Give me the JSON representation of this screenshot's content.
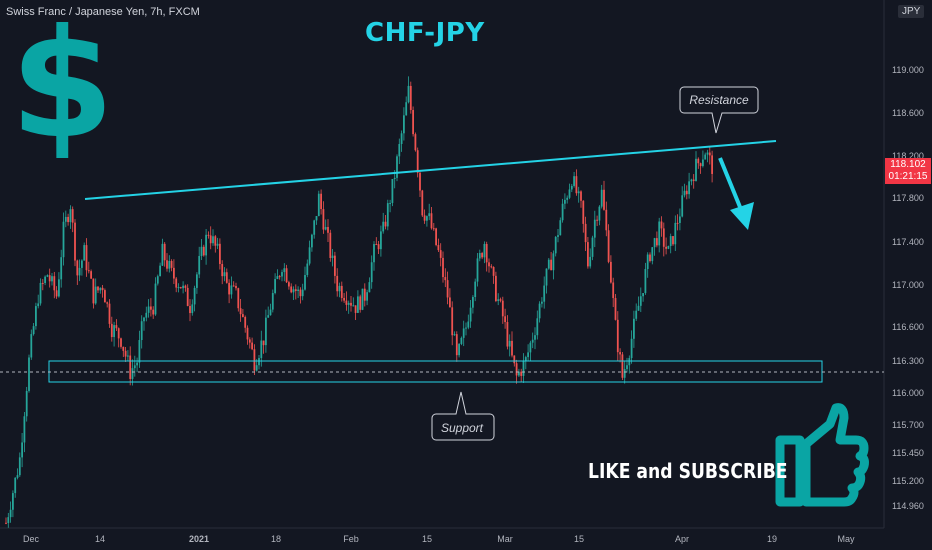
{
  "header": {
    "symbol": "Swiss Franc / Japanese Yen, 7h, FXCM",
    "title": "CHF-JPY",
    "currency_badge": "JPY"
  },
  "overlay": {
    "dollar_sign": "$",
    "like_text": "LIKE and SUBSCRIBE",
    "resistance_label": "Resistance",
    "support_label": "Support"
  },
  "price_tag": {
    "price": "118.102",
    "countdown": "01:21:15"
  },
  "colors": {
    "background": "#131722",
    "up_candle": "#26a69a",
    "down_candle": "#ef5350",
    "trendline": "#24d3e6",
    "accent": "#0aa5a4"
  },
  "chart_data": {
    "type": "candlestick",
    "title": "CHF-JPY",
    "y_axis_ticks": [
      "119.000",
      "118.600",
      "118.200",
      "117.800",
      "117.400",
      "117.000",
      "116.600",
      "116.300",
      "116.000",
      "115.700",
      "115.450",
      "115.200",
      "114.960"
    ],
    "x_axis_ticks": [
      "Dec",
      "14",
      "2021",
      "18",
      "Feb",
      "15",
      "Mar",
      "15",
      "Apr",
      "19",
      "May"
    ],
    "ylim": [
      114.8,
      119.4
    ],
    "current_price": 118.102,
    "resistance_line": {
      "start": [
        "Dec 10",
        117.8
      ],
      "end": [
        "Apr 12",
        118.35
      ]
    },
    "support_zone": {
      "low": 116.12,
      "high": 116.3
    },
    "path": [
      [
        0,
        114.8
      ],
      [
        6,
        115.4
      ],
      [
        10,
        116.3
      ],
      [
        14,
        116.9
      ],
      [
        18,
        117.1
      ],
      [
        22,
        116.9
      ],
      [
        25,
        117.5
      ],
      [
        28,
        117.75
      ],
      [
        31,
        117.1
      ],
      [
        34,
        117.3
      ],
      [
        38,
        116.9
      ],
      [
        42,
        117.0
      ],
      [
        46,
        116.6
      ],
      [
        50,
        116.5
      ],
      [
        54,
        116.2
      ],
      [
        57,
        116.3
      ],
      [
        60,
        116.7
      ],
      [
        64,
        116.8
      ],
      [
        68,
        117.3
      ],
      [
        72,
        117.1
      ],
      [
        76,
        117.0
      ],
      [
        80,
        116.8
      ],
      [
        84,
        117.2
      ],
      [
        88,
        117.5
      ],
      [
        92,
        117.3
      ],
      [
        96,
        117.0
      ],
      [
        100,
        116.9
      ],
      [
        104,
        116.6
      ],
      [
        108,
        116.3
      ],
      [
        112,
        116.5
      ],
      [
        116,
        116.9
      ],
      [
        120,
        117.2
      ],
      [
        124,
        117.0
      ],
      [
        128,
        116.9
      ],
      [
        132,
        117.3
      ],
      [
        136,
        117.8
      ],
      [
        140,
        117.4
      ],
      [
        144,
        117.0
      ],
      [
        148,
        116.9
      ],
      [
        152,
        116.8
      ],
      [
        156,
        116.9
      ],
      [
        160,
        117.3
      ],
      [
        164,
        117.5
      ],
      [
        168,
        117.9
      ],
      [
        172,
        118.4
      ],
      [
        175,
        118.8
      ],
      [
        178,
        118.3
      ],
      [
        181,
        117.7
      ],
      [
        184,
        117.6
      ],
      [
        188,
        117.3
      ],
      [
        192,
        116.9
      ],
      [
        196,
        116.3
      ],
      [
        200,
        116.6
      ],
      [
        204,
        117.1
      ],
      [
        208,
        117.4
      ],
      [
        212,
        117.0
      ],
      [
        216,
        116.7
      ],
      [
        219,
        116.4
      ],
      [
        222,
        116.15
      ],
      [
        226,
        116.3
      ],
      [
        230,
        116.6
      ],
      [
        234,
        117.0
      ],
      [
        238,
        117.3
      ],
      [
        242,
        117.7
      ],
      [
        246,
        118.0
      ],
      [
        250,
        117.7
      ],
      [
        253,
        117.2
      ],
      [
        256,
        117.6
      ],
      [
        259,
        117.85
      ],
      [
        262,
        117.3
      ],
      [
        265,
        116.6
      ],
      [
        268,
        116.15
      ],
      [
        272,
        116.5
      ],
      [
        276,
        116.9
      ],
      [
        280,
        117.3
      ],
      [
        284,
        117.5
      ],
      [
        288,
        117.3
      ],
      [
        292,
        117.6
      ],
      [
        296,
        117.9
      ],
      [
        300,
        118.1
      ],
      [
        304,
        118.25
      ],
      [
        307,
        118.1
      ]
    ]
  }
}
